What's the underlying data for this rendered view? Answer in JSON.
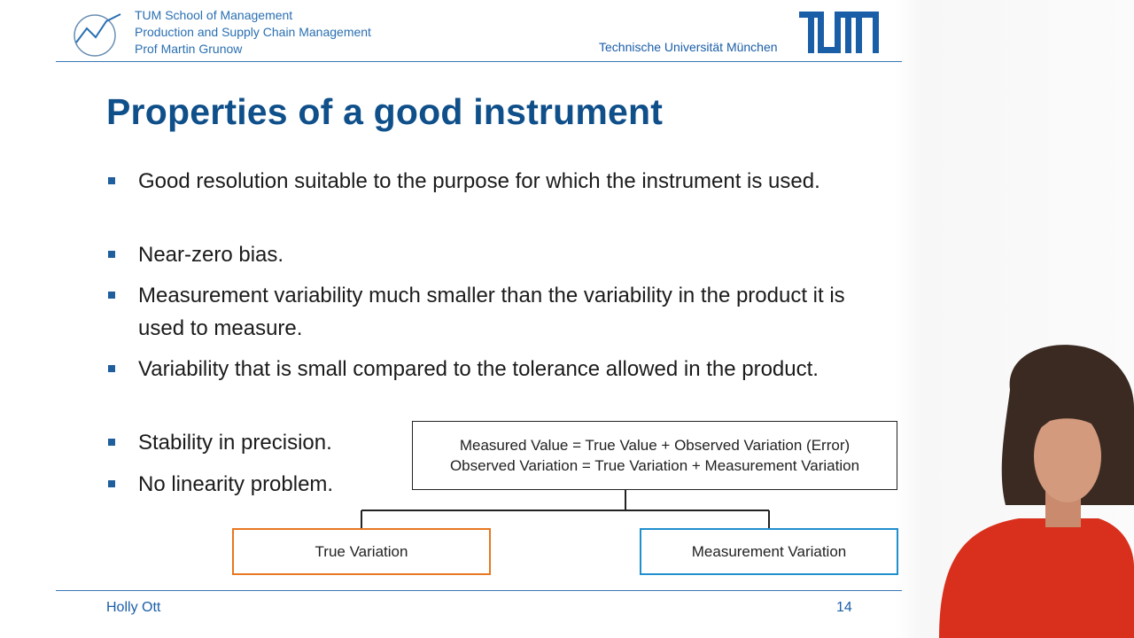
{
  "header": {
    "lines": [
      "TUM School of Management",
      "Production and Supply Chain Management",
      "Prof Martin Grunow"
    ],
    "university": "Technische Universität München"
  },
  "slide": {
    "title": "Properties of a good instrument",
    "bullets": [
      "Good resolution suitable to the purpose for which the instrument is used.",
      "Near-zero bias.",
      "Measurement variability much smaller than the variability in the product it is used to measure.",
      "Variability that is small compared to the tolerance allowed in the product.",
      "Stability in precision.",
      "No linearity problem."
    ],
    "formula": {
      "line1": "Measured Value = True Value + Observed Variation (Error)",
      "line2": "Observed Variation = True Variation + Measurement Variation"
    },
    "boxes": {
      "true_variation": "True Variation",
      "measurement_variation": "Measurement Variation"
    }
  },
  "footer": {
    "author": "Holly Ott",
    "page": "14"
  },
  "colors": {
    "tum_blue": "#0f4f8a",
    "orange": "#e87722",
    "light_blue": "#1f8fce"
  }
}
